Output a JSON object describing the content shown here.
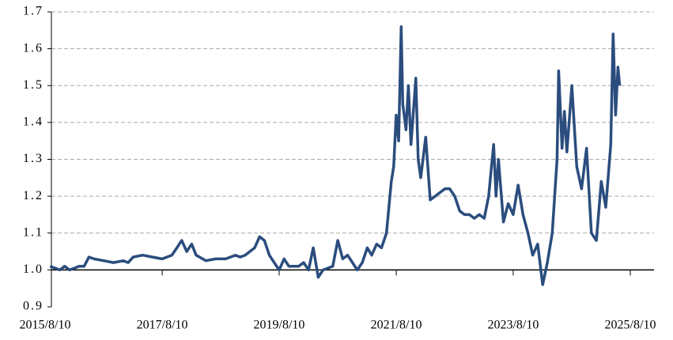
{
  "chart_data": {
    "type": "line",
    "x": [
      "2015/9/10",
      "2015/10/10",
      "2015/11/10",
      "2015/12/10",
      "2016/1/10",
      "2016/2/10",
      "2016/3/10",
      "2016/4/10",
      "2016/5/10",
      "2016/6/10",
      "2016/8/10",
      "2016/10/10",
      "2016/12/10",
      "2017/1/10",
      "2017/2/10",
      "2017/4/10",
      "2017/6/10",
      "2017/8/10",
      "2017/10/10",
      "2017/11/10",
      "2017/12/10",
      "2018/1/10",
      "2018/2/10",
      "2018/3/10",
      "2018/5/10",
      "2018/7/10",
      "2018/9/10",
      "2018/11/10",
      "2018/12/10",
      "2019/1/10",
      "2019/3/10",
      "2019/4/10",
      "2019/5/10",
      "2019/6/10",
      "2019/7/10",
      "2019/8/10",
      "2019/9/10",
      "2019/10/10",
      "2019/12/10",
      "2020/1/10",
      "2020/2/10",
      "2020/3/10",
      "2020/4/10",
      "2020/5/10",
      "2020/7/10",
      "2020/8/10",
      "2020/9/10",
      "2020/10/10",
      "2020/11/10",
      "2020/12/10",
      "2021/1/10",
      "2021/2/10",
      "2021/3/10",
      "2021/4/10",
      "2021/5/10",
      "2021/6/10",
      "2021/7/10",
      "2021/7/25",
      "2021/8/10",
      "2021/8/25",
      "2021/9/10",
      "2021/9/20",
      "2021/10/10",
      "2021/10/25",
      "2021/11/10",
      "2021/12/10",
      "2021/12/25",
      "2022/1/10",
      "2022/2/10",
      "2022/3/10",
      "2022/4/10",
      "2022/5/10",
      "2022/6/10",
      "2022/7/10",
      "2022/8/10",
      "2022/9/10",
      "2022/10/10",
      "2022/11/10",
      "2022/12/10",
      "2023/1/10",
      "2023/2/10",
      "2023/3/10",
      "2023/4/10",
      "2023/4/25",
      "2023/5/10",
      "2023/6/10",
      "2023/7/10",
      "2023/8/10",
      "2023/9/10",
      "2023/10/10",
      "2023/11/10",
      "2023/12/10",
      "2024/1/10",
      "2024/2/10",
      "2024/3/10",
      "2024/4/10",
      "2024/5/10",
      "2024/5/20",
      "2024/6/10",
      "2024/6/25",
      "2024/7/10",
      "2024/8/10",
      "2024/9/10",
      "2024/10/10",
      "2024/11/10",
      "2024/12/10",
      "2025/1/10",
      "2025/2/10",
      "2025/3/10",
      "2025/4/10",
      "2025/4/25",
      "2025/5/10",
      "2025/5/25",
      "2025/6/5"
    ],
    "series": [
      {
        "color": "#2b4d7e",
        "values": [
          1.01,
          1.005,
          1.0,
          1.01,
          1.0,
          1.005,
          1.01,
          1.01,
          1.035,
          1.03,
          1.025,
          1.02,
          1.025,
          1.02,
          1.035,
          1.04,
          1.035,
          1.03,
          1.04,
          1.06,
          1.08,
          1.05,
          1.07,
          1.04,
          1.025,
          1.03,
          1.03,
          1.04,
          1.035,
          1.04,
          1.06,
          1.09,
          1.08,
          1.04,
          1.02,
          1.0,
          1.03,
          1.01,
          1.01,
          1.02,
          1.0,
          1.06,
          0.98,
          1.0,
          1.01,
          1.08,
          1.03,
          1.04,
          1.02,
          1.0,
          1.02,
          1.06,
          1.04,
          1.07,
          1.06,
          1.1,
          1.24,
          1.28,
          1.42,
          1.35,
          1.66,
          1.45,
          1.38,
          1.5,
          1.34,
          1.52,
          1.3,
          1.25,
          1.36,
          1.19,
          1.2,
          1.21,
          1.22,
          1.22,
          1.2,
          1.16,
          1.15,
          1.15,
          1.14,
          1.15,
          1.14,
          1.2,
          1.34,
          1.2,
          1.3,
          1.13,
          1.18,
          1.15,
          1.23,
          1.15,
          1.1,
          1.04,
          1.07,
          0.96,
          1.02,
          1.1,
          1.3,
          1.54,
          1.33,
          1.43,
          1.32,
          1.5,
          1.28,
          1.22,
          1.33,
          1.1,
          1.08,
          1.24,
          1.17,
          1.34,
          1.64,
          1.42,
          1.55,
          1.5
        ]
      }
    ],
    "xlim": [
      "2015/8/10",
      "2025/8/10"
    ],
    "xticks": [
      "2015/8/10",
      "2017/8/10",
      "2019/8/10",
      "2021/8/10",
      "2023/8/10",
      "2025/8/10"
    ],
    "ylim": [
      0.9,
      1.7
    ],
    "yticks": [
      0.9,
      {
        "value": 1,
        "label": "1.0"
      },
      1.1,
      1.2,
      1.3,
      1.4,
      1.5,
      1.6,
      1.7
    ],
    "grid": true
  }
}
